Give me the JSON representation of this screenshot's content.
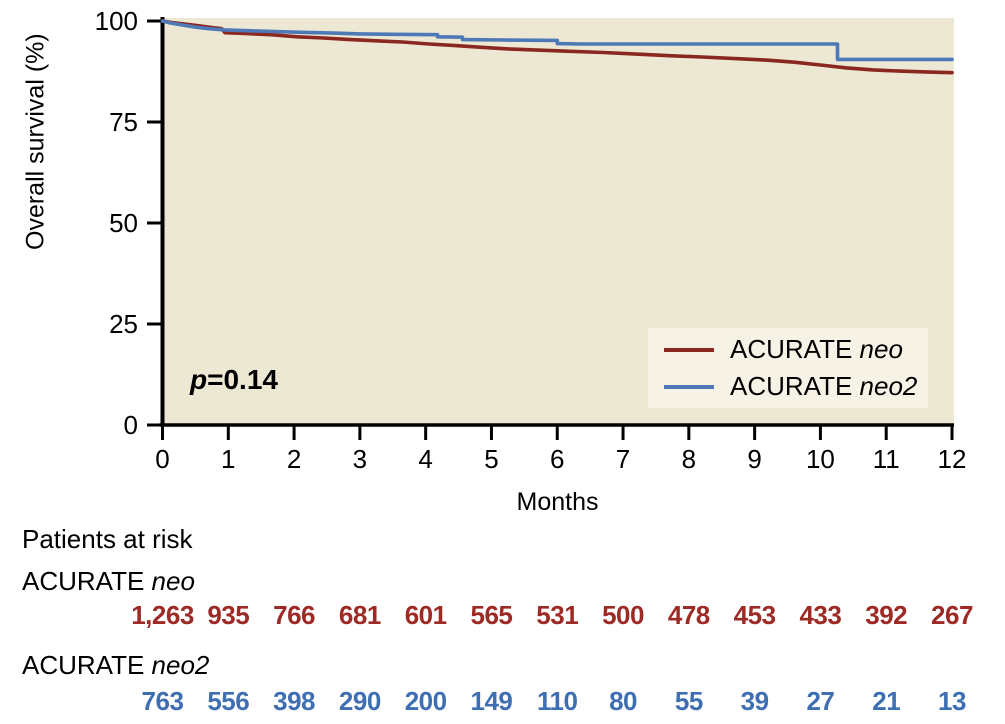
{
  "chart_data": {
    "type": "line",
    "subtype": "kaplan-meier-survival",
    "title": "",
    "xlabel": "Months",
    "ylabel": "Overall survival (%)",
    "xlim": [
      0,
      12
    ],
    "ylim": [
      0,
      100
    ],
    "x_ticks": [
      0,
      1,
      2,
      3,
      4,
      5,
      6,
      7,
      8,
      9,
      10,
      11,
      12
    ],
    "y_ticks": [
      0,
      25,
      50,
      75,
      100
    ],
    "grid": false,
    "plot_bg_color": "#ece8d4",
    "axis_color": "#000000",
    "annotation": {
      "text_italic": "p",
      "text_rest": "=0.14",
      "x": 0.6,
      "y": 10
    },
    "legend": {
      "position": "lower right",
      "bg_color": "#f6f3e6",
      "entries": [
        {
          "label_regular": "ACURATE ",
          "label_italic": "neo",
          "color": "#8b2721"
        },
        {
          "label_regular": "ACURATE ",
          "label_italic": "neo2",
          "color": "#4e79b7"
        }
      ]
    },
    "series": [
      {
        "name": "ACURATE neo",
        "color": "#8b2721",
        "points": [
          [
            0,
            100
          ],
          [
            0.15,
            99.6
          ],
          [
            0.35,
            99.2
          ],
          [
            0.55,
            98.8
          ],
          [
            0.75,
            98.4
          ],
          [
            0.9,
            98.1
          ],
          [
            0.95,
            97.1
          ],
          [
            1.25,
            96.9
          ],
          [
            1.65,
            96.6
          ],
          [
            2.05,
            96.1
          ],
          [
            2.45,
            95.8
          ],
          [
            2.85,
            95.4
          ],
          [
            3.25,
            95.1
          ],
          [
            3.65,
            94.8
          ],
          [
            4.05,
            94.3
          ],
          [
            4.45,
            93.9
          ],
          [
            4.85,
            93.5
          ],
          [
            5.25,
            93.1
          ],
          [
            5.7,
            92.8
          ],
          [
            6.2,
            92.5
          ],
          [
            6.7,
            92.2
          ],
          [
            7.2,
            91.8
          ],
          [
            7.7,
            91.4
          ],
          [
            8.2,
            91.1
          ],
          [
            8.7,
            90.7
          ],
          [
            9.2,
            90.3
          ],
          [
            9.6,
            89.8
          ],
          [
            10.0,
            89.1
          ],
          [
            10.4,
            88.4
          ],
          [
            10.8,
            87.9
          ],
          [
            11.2,
            87.6
          ],
          [
            11.6,
            87.4
          ],
          [
            12,
            87.2
          ]
        ]
      },
      {
        "name": "ACURATE neo2",
        "color": "#4e79b7",
        "points": [
          [
            0,
            100
          ],
          [
            0.12,
            99.5
          ],
          [
            0.3,
            99.0
          ],
          [
            0.5,
            98.5
          ],
          [
            0.7,
            98.1
          ],
          [
            0.95,
            97.8
          ],
          [
            1.3,
            97.6
          ],
          [
            1.7,
            97.4
          ],
          [
            2.1,
            97.2
          ],
          [
            2.6,
            97.0
          ],
          [
            3.0,
            96.8
          ],
          [
            3.5,
            96.7
          ],
          [
            4.18,
            96.6
          ],
          [
            4.18,
            96.1
          ],
          [
            4.56,
            96.0
          ],
          [
            4.56,
            95.4
          ],
          [
            5.2,
            95.3
          ],
          [
            6.0,
            95.2
          ],
          [
            6.0,
            94.4
          ],
          [
            6.35,
            94.3
          ],
          [
            10.26,
            94.3
          ],
          [
            10.26,
            90.5
          ],
          [
            12,
            90.5
          ]
        ]
      }
    ],
    "risk_table": {
      "title": "Patients at risk",
      "rows": [
        {
          "label_regular": "ACURATE ",
          "label_italic": "neo",
          "color": "#9d2a24",
          "counts": [
            "1,263",
            "935",
            "766",
            "681",
            "601",
            "565",
            "531",
            "500",
            "478",
            "453",
            "433",
            "392",
            "267"
          ]
        },
        {
          "label_regular": "ACURATE ",
          "label_italic": "neo2",
          "color": "#3f6fb3",
          "counts": [
            "763",
            "556",
            "398",
            "290",
            "200",
            "149",
            "110",
            "80",
            "55",
            "39",
            "27",
            "21",
            "13"
          ]
        }
      ]
    }
  }
}
